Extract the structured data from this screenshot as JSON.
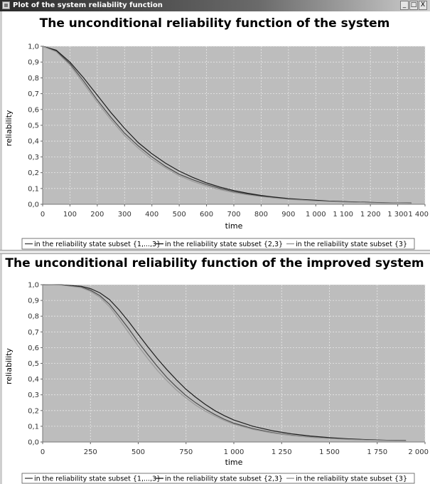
{
  "window": {
    "title": "Plot of the system reliability function",
    "buttons": {
      "minimize": "_",
      "maximize": "□",
      "close": "X"
    }
  },
  "colors": {
    "plot_background": "#bdbdbd",
    "grid": "#e9e9e9",
    "series": [
      "#4a4a4a",
      "#1e1e1e",
      "#9a9a9a"
    ]
  },
  "chart_data": [
    {
      "type": "line",
      "title": "The unconditional reliability function of the system",
      "xlabel": "time",
      "ylabel": "reliability",
      "xlim": [
        0,
        1400
      ],
      "ylim": [
        0,
        1.0
      ],
      "xticks": [
        0,
        100,
        200,
        300,
        400,
        500,
        600,
        700,
        800,
        900,
        1000,
        1100,
        1200,
        1300,
        1400
      ],
      "xtick_labels": [
        "0",
        "100",
        "200",
        "300",
        "400",
        "500",
        "600",
        "700",
        "800",
        "900",
        "1 000",
        "1 100",
        "1 200",
        "1 300",
        "1 400"
      ],
      "yticks": [
        0,
        0.1,
        0.2,
        0.3,
        0.4,
        0.5,
        0.6,
        0.7,
        0.8,
        0.9,
        1.0
      ],
      "ytick_labels": [
        "0,0",
        "0,1",
        "0,2",
        "0,3",
        "0,4",
        "0,5",
        "0,6",
        "0,7",
        "0,8",
        "0,9",
        "1,0"
      ],
      "grid": true,
      "legend_position": "bottom",
      "series": [
        {
          "name": "in the reliability state subset {1,...,3}",
          "x": [
            0,
            50,
            100,
            150,
            200,
            250,
            300,
            350,
            400,
            450,
            500,
            550,
            600,
            650,
            700,
            750,
            800,
            850,
            900,
            950,
            1000,
            1050,
            1100,
            1150,
            1200,
            1250,
            1300,
            1350
          ],
          "y": [
            1.0,
            0.97,
            0.89,
            0.78,
            0.66,
            0.55,
            0.45,
            0.37,
            0.3,
            0.24,
            0.19,
            0.155,
            0.125,
            0.1,
            0.08,
            0.065,
            0.052,
            0.042,
            0.034,
            0.028,
            0.023,
            0.019,
            0.016,
            0.013,
            0.011,
            0.009,
            0.008,
            0.007
          ]
        },
        {
          "name": "in the reliability state subset {2,3}",
          "x": [
            0,
            50,
            100,
            150,
            200,
            250,
            300,
            350,
            400,
            450,
            500,
            550,
            600,
            650,
            700,
            750,
            800,
            850,
            900,
            950,
            1000,
            1050,
            1100,
            1150,
            1200,
            1250,
            1300,
            1350
          ],
          "y": [
            1.0,
            0.975,
            0.9,
            0.8,
            0.69,
            0.58,
            0.48,
            0.39,
            0.32,
            0.26,
            0.21,
            0.17,
            0.135,
            0.108,
            0.087,
            0.07,
            0.056,
            0.045,
            0.036,
            0.03,
            0.025,
            0.02,
            0.017,
            0.014,
            0.012,
            0.01,
            0.008,
            0.007
          ]
        },
        {
          "name": "in the reliability state subset {3}",
          "x": [
            0,
            50,
            100,
            150,
            200,
            250,
            300,
            350,
            400,
            450,
            500,
            550,
            600,
            650,
            700,
            750,
            800,
            850,
            900,
            950,
            1000,
            1050,
            1100,
            1150,
            1200,
            1250,
            1300,
            1350
          ],
          "y": [
            1.0,
            0.965,
            0.88,
            0.765,
            0.645,
            0.535,
            0.435,
            0.355,
            0.285,
            0.23,
            0.18,
            0.145,
            0.115,
            0.092,
            0.074,
            0.06,
            0.048,
            0.039,
            0.031,
            0.026,
            0.021,
            0.017,
            0.014,
            0.012,
            0.01,
            0.008,
            0.007,
            0.006
          ]
        }
      ]
    },
    {
      "type": "line",
      "title": "The unconditional reliability function of the improved system",
      "xlabel": "time",
      "ylabel": "reliability",
      "xlim": [
        0,
        2000
      ],
      "ylim": [
        0,
        1.0
      ],
      "xticks": [
        0,
        250,
        500,
        750,
        1000,
        1250,
        1500,
        1750,
        2000
      ],
      "xtick_labels": [
        "0",
        "250",
        "500",
        "750",
        "1 000",
        "1 250",
        "1 500",
        "1 750",
        "2 000"
      ],
      "yticks": [
        0,
        0.1,
        0.2,
        0.3,
        0.4,
        0.5,
        0.6,
        0.7,
        0.8,
        0.9,
        1.0
      ],
      "ytick_labels": [
        "0,0",
        "0,1",
        "0,2",
        "0,3",
        "0,4",
        "0,5",
        "0,6",
        "0,7",
        "0,8",
        "0,9",
        "1,0"
      ],
      "grid": true,
      "legend_position": "bottom",
      "series": [
        {
          "name": "in the reliability state subset {1,...,3}",
          "x": [
            0,
            100,
            200,
            250,
            300,
            350,
            400,
            450,
            500,
            550,
            600,
            650,
            700,
            750,
            800,
            850,
            900,
            950,
            1000,
            1100,
            1200,
            1300,
            1400,
            1500,
            1600,
            1700,
            1800,
            1900
          ],
          "y": [
            1.0,
            0.998,
            0.985,
            0.965,
            0.93,
            0.875,
            0.8,
            0.72,
            0.635,
            0.555,
            0.48,
            0.41,
            0.35,
            0.295,
            0.25,
            0.21,
            0.175,
            0.145,
            0.12,
            0.085,
            0.06,
            0.043,
            0.031,
            0.023,
            0.017,
            0.013,
            0.01,
            0.008
          ]
        },
        {
          "name": "in the reliability state subset {2,3}",
          "x": [
            0,
            100,
            200,
            250,
            300,
            350,
            400,
            450,
            500,
            550,
            600,
            650,
            700,
            750,
            800,
            850,
            900,
            950,
            1000,
            1100,
            1200,
            1300,
            1400,
            1500,
            1600,
            1700,
            1800,
            1900
          ],
          "y": [
            1.0,
            0.999,
            0.99,
            0.975,
            0.948,
            0.905,
            0.84,
            0.765,
            0.685,
            0.605,
            0.53,
            0.46,
            0.395,
            0.335,
            0.285,
            0.24,
            0.2,
            0.168,
            0.14,
            0.1,
            0.072,
            0.052,
            0.038,
            0.028,
            0.02,
            0.015,
            0.011,
            0.009
          ]
        },
        {
          "name": "in the reliability state subset {3}",
          "x": [
            0,
            100,
            200,
            250,
            300,
            350,
            400,
            450,
            500,
            550,
            600,
            650,
            700,
            750,
            800,
            850,
            900,
            950,
            1000,
            1100,
            1200,
            1300,
            1400,
            1500,
            1600,
            1700,
            1800,
            1900
          ],
          "y": [
            1.0,
            0.997,
            0.982,
            0.958,
            0.92,
            0.86,
            0.78,
            0.695,
            0.61,
            0.53,
            0.455,
            0.39,
            0.33,
            0.28,
            0.235,
            0.197,
            0.165,
            0.137,
            0.113,
            0.08,
            0.057,
            0.041,
            0.03,
            0.022,
            0.016,
            0.012,
            0.009,
            0.007
          ]
        }
      ]
    }
  ]
}
